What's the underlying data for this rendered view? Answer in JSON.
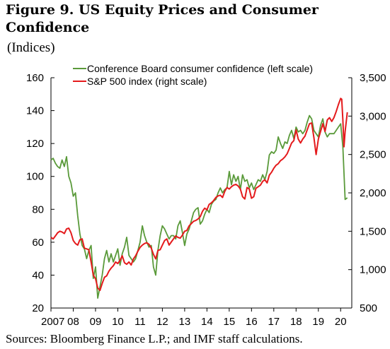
{
  "figure": {
    "title": "Figure 9. US Equity Prices and Consumer Confidence",
    "subtitle": "(Indices)",
    "source": "Sources: Bloomberg Finance L.P.; and IMF staff calculations."
  },
  "colors": {
    "confidence": "#5a9a3a",
    "sp500": "#e41a1c",
    "axis": "#000000"
  },
  "chart_data": {
    "type": "line",
    "title": "US Equity Prices and Consumer Confidence",
    "x_axis": {
      "range": [
        2007.0,
        2020.5
      ],
      "tick_labels": [
        {
          "x": 2007.0,
          "label": "2007"
        },
        {
          "x": 2008.0,
          "label": "08"
        },
        {
          "x": 2009.0,
          "label": "09"
        },
        {
          "x": 2010.0,
          "label": "10"
        },
        {
          "x": 2011.0,
          "label": "11"
        },
        {
          "x": 2012.0,
          "label": "12"
        },
        {
          "x": 2013.0,
          "label": "13"
        },
        {
          "x": 2014.0,
          "label": "14"
        },
        {
          "x": 2015.0,
          "label": "15"
        },
        {
          "x": 2016.0,
          "label": "16"
        },
        {
          "x": 2017.0,
          "label": "17"
        },
        {
          "x": 2018.0,
          "label": "18"
        },
        {
          "x": 2019.0,
          "label": "19"
        },
        {
          "x": 2020.0,
          "label": "20"
        }
      ]
    },
    "y_left": {
      "range": [
        20,
        160
      ],
      "ticks": [
        20,
        40,
        60,
        80,
        100,
        120,
        140,
        160
      ],
      "tick_labels": [
        "20",
        "40",
        "60",
        "80",
        "100",
        "120",
        "140",
        "160"
      ]
    },
    "y_right": {
      "range": [
        500,
        3500
      ],
      "ticks": [
        500,
        1000,
        1500,
        2000,
        2500,
        3000,
        3500
      ],
      "tick_labels": [
        "500",
        "1,000",
        "1,500",
        "2,000",
        "2,500",
        "3,000",
        "3,500"
      ]
    },
    "grid": false,
    "legend_position": "top",
    "series": [
      {
        "name": "Conference Board consumer confidence (left scale)",
        "axis": "left",
        "color": "#5a9a3a",
        "points": [
          [
            2007.0,
            110
          ],
          [
            2007.1,
            111
          ],
          [
            2007.2,
            108
          ],
          [
            2007.3,
            106
          ],
          [
            2007.4,
            105
          ],
          [
            2007.5,
            110
          ],
          [
            2007.6,
            106
          ],
          [
            2007.7,
            112
          ],
          [
            2007.8,
            100
          ],
          [
            2007.9,
            96
          ],
          [
            2008.0,
            88
          ],
          [
            2008.1,
            90
          ],
          [
            2008.2,
            76
          ],
          [
            2008.3,
            65
          ],
          [
            2008.4,
            58
          ],
          [
            2008.5,
            56
          ],
          [
            2008.6,
            50
          ],
          [
            2008.7,
            55
          ],
          [
            2008.8,
            58
          ],
          [
            2008.9,
            38
          ],
          [
            2009.0,
            45
          ],
          [
            2009.1,
            26
          ],
          [
            2009.2,
            33
          ],
          [
            2009.3,
            40
          ],
          [
            2009.4,
            50
          ],
          [
            2009.5,
            55
          ],
          [
            2009.6,
            48
          ],
          [
            2009.7,
            53
          ],
          [
            2009.8,
            48
          ],
          [
            2009.9,
            52
          ],
          [
            2010.0,
            56
          ],
          [
            2010.1,
            46
          ],
          [
            2010.2,
            53
          ],
          [
            2010.3,
            57
          ],
          [
            2010.4,
            63
          ],
          [
            2010.5,
            52
          ],
          [
            2010.6,
            50
          ],
          [
            2010.7,
            48
          ],
          [
            2010.8,
            50
          ],
          [
            2010.9,
            55
          ],
          [
            2011.0,
            60
          ],
          [
            2011.1,
            70
          ],
          [
            2011.2,
            64
          ],
          [
            2011.3,
            60
          ],
          [
            2011.4,
            57
          ],
          [
            2011.5,
            58
          ],
          [
            2011.6,
            45
          ],
          [
            2011.7,
            40
          ],
          [
            2011.8,
            55
          ],
          [
            2011.9,
            64
          ],
          [
            2012.0,
            70
          ],
          [
            2012.1,
            68
          ],
          [
            2012.2,
            65
          ],
          [
            2012.3,
            62
          ],
          [
            2012.4,
            64
          ],
          [
            2012.5,
            64
          ],
          [
            2012.6,
            62
          ],
          [
            2012.7,
            70
          ],
          [
            2012.8,
            73
          ],
          [
            2012.9,
            66
          ],
          [
            2013.0,
            58
          ],
          [
            2013.1,
            65
          ],
          [
            2013.2,
            68
          ],
          [
            2013.3,
            73
          ],
          [
            2013.4,
            78
          ],
          [
            2013.5,
            80
          ],
          [
            2013.6,
            81
          ],
          [
            2013.7,
            71
          ],
          [
            2013.8,
            73
          ],
          [
            2013.9,
            77
          ],
          [
            2014.0,
            80
          ],
          [
            2014.1,
            78
          ],
          [
            2014.2,
            83
          ],
          [
            2014.3,
            85
          ],
          [
            2014.4,
            86
          ],
          [
            2014.5,
            90
          ],
          [
            2014.6,
            93
          ],
          [
            2014.7,
            90
          ],
          [
            2014.8,
            92
          ],
          [
            2014.9,
            93
          ],
          [
            2015.0,
            103
          ],
          [
            2015.1,
            95
          ],
          [
            2015.2,
            101
          ],
          [
            2015.3,
            97
          ],
          [
            2015.4,
            100
          ],
          [
            2015.5,
            92
          ],
          [
            2015.6,
            101
          ],
          [
            2015.7,
            97
          ],
          [
            2015.8,
            98
          ],
          [
            2015.9,
            93
          ],
          [
            2016.0,
            96
          ],
          [
            2016.1,
            92
          ],
          [
            2016.2,
            95
          ],
          [
            2016.3,
            98
          ],
          [
            2016.4,
            97
          ],
          [
            2016.5,
            101
          ],
          [
            2016.6,
            98
          ],
          [
            2016.7,
            103
          ],
          [
            2016.8,
            113
          ],
          [
            2016.9,
            115
          ],
          [
            2017.0,
            114
          ],
          [
            2017.1,
            116
          ],
          [
            2017.2,
            124
          ],
          [
            2017.3,
            120
          ],
          [
            2017.4,
            117
          ],
          [
            2017.5,
            121
          ],
          [
            2017.6,
            120
          ],
          [
            2017.7,
            125
          ],
          [
            2017.8,
            128
          ],
          [
            2017.9,
            123
          ],
          [
            2018.0,
            130
          ],
          [
            2018.1,
            127
          ],
          [
            2018.2,
            128
          ],
          [
            2018.3,
            126
          ],
          [
            2018.4,
            128
          ],
          [
            2018.5,
            133
          ],
          [
            2018.6,
            137
          ],
          [
            2018.7,
            135
          ],
          [
            2018.8,
            128
          ],
          [
            2018.9,
            126
          ],
          [
            2019.0,
            124
          ],
          [
            2019.1,
            131
          ],
          [
            2019.2,
            135
          ],
          [
            2019.3,
            127
          ],
          [
            2019.4,
            124
          ],
          [
            2019.5,
            126
          ],
          [
            2019.6,
            126
          ],
          [
            2019.7,
            126
          ],
          [
            2019.8,
            128
          ],
          [
            2019.9,
            130
          ],
          [
            2020.0,
            132
          ],
          [
            2020.1,
            118
          ],
          [
            2020.2,
            86
          ],
          [
            2020.3,
            87
          ]
        ]
      },
      {
        "name": "S&P 500 index (right scale)",
        "axis": "right",
        "color": "#e41a1c",
        "points": [
          [
            2007.0,
            1420
          ],
          [
            2007.1,
            1400
          ],
          [
            2007.2,
            1440
          ],
          [
            2007.3,
            1480
          ],
          [
            2007.4,
            1500
          ],
          [
            2007.5,
            1490
          ],
          [
            2007.6,
            1470
          ],
          [
            2007.7,
            1530
          ],
          [
            2007.8,
            1540
          ],
          [
            2007.9,
            1480
          ],
          [
            2008.0,
            1380
          ],
          [
            2008.1,
            1340
          ],
          [
            2008.2,
            1320
          ],
          [
            2008.3,
            1390
          ],
          [
            2008.4,
            1400
          ],
          [
            2008.5,
            1280
          ],
          [
            2008.6,
            1270
          ],
          [
            2008.7,
            1260
          ],
          [
            2008.8,
            1100
          ],
          [
            2008.9,
            930
          ],
          [
            2009.0,
            880
          ],
          [
            2009.1,
            760
          ],
          [
            2009.2,
            730
          ],
          [
            2009.3,
            820
          ],
          [
            2009.4,
            900
          ],
          [
            2009.5,
            920
          ],
          [
            2009.6,
            980
          ],
          [
            2009.7,
            1020
          ],
          [
            2009.8,
            1050
          ],
          [
            2009.9,
            1100
          ],
          [
            2010.0,
            1080
          ],
          [
            2010.1,
            1120
          ],
          [
            2010.2,
            1180
          ],
          [
            2010.3,
            1090
          ],
          [
            2010.4,
            1070
          ],
          [
            2010.5,
            1100
          ],
          [
            2010.6,
            1060
          ],
          [
            2010.7,
            1140
          ],
          [
            2010.8,
            1180
          ],
          [
            2010.9,
            1240
          ],
          [
            2011.0,
            1290
          ],
          [
            2011.1,
            1320
          ],
          [
            2011.2,
            1340
          ],
          [
            2011.3,
            1350
          ],
          [
            2011.4,
            1330
          ],
          [
            2011.5,
            1280
          ],
          [
            2011.6,
            1200
          ],
          [
            2011.7,
            1140
          ],
          [
            2011.8,
            1250
          ],
          [
            2011.9,
            1260
          ],
          [
            2012.0,
            1320
          ],
          [
            2012.1,
            1380
          ],
          [
            2012.2,
            1400
          ],
          [
            2012.3,
            1320
          ],
          [
            2012.4,
            1360
          ],
          [
            2012.5,
            1400
          ],
          [
            2012.6,
            1440
          ],
          [
            2012.7,
            1420
          ],
          [
            2012.8,
            1410
          ],
          [
            2012.9,
            1450
          ],
          [
            2013.0,
            1500
          ],
          [
            2013.1,
            1510
          ],
          [
            2013.2,
            1570
          ],
          [
            2013.3,
            1600
          ],
          [
            2013.4,
            1630
          ],
          [
            2013.5,
            1640
          ],
          [
            2013.6,
            1660
          ],
          [
            2013.7,
            1690
          ],
          [
            2013.8,
            1760
          ],
          [
            2013.9,
            1800
          ],
          [
            2014.0,
            1780
          ],
          [
            2014.1,
            1850
          ],
          [
            2014.2,
            1870
          ],
          [
            2014.3,
            1900
          ],
          [
            2014.4,
            1940
          ],
          [
            2014.5,
            1960
          ],
          [
            2014.6,
            1970
          ],
          [
            2014.7,
            1940
          ],
          [
            2014.8,
            2020
          ],
          [
            2014.9,
            2070
          ],
          [
            2015.0,
            2050
          ],
          [
            2015.1,
            2080
          ],
          [
            2015.2,
            2100
          ],
          [
            2015.3,
            2110
          ],
          [
            2015.4,
            2090
          ],
          [
            2015.5,
            2050
          ],
          [
            2015.6,
            1950
          ],
          [
            2015.7,
            1920
          ],
          [
            2015.8,
            2070
          ],
          [
            2015.9,
            2050
          ],
          [
            2016.0,
            1930
          ],
          [
            2016.1,
            1950
          ],
          [
            2016.2,
            2060
          ],
          [
            2016.3,
            2080
          ],
          [
            2016.4,
            2100
          ],
          [
            2016.5,
            2150
          ],
          [
            2016.6,
            2170
          ],
          [
            2016.7,
            2130
          ],
          [
            2016.8,
            2230
          ],
          [
            2016.9,
            2270
          ],
          [
            2017.0,
            2320
          ],
          [
            2017.1,
            2360
          ],
          [
            2017.2,
            2380
          ],
          [
            2017.3,
            2420
          ],
          [
            2017.4,
            2440
          ],
          [
            2017.5,
            2470
          ],
          [
            2017.6,
            2510
          ],
          [
            2017.7,
            2580
          ],
          [
            2017.8,
            2650
          ],
          [
            2017.9,
            2680
          ],
          [
            2018.0,
            2820
          ],
          [
            2018.1,
            2700
          ],
          [
            2018.2,
            2650
          ],
          [
            2018.3,
            2700
          ],
          [
            2018.4,
            2740
          ],
          [
            2018.5,
            2820
          ],
          [
            2018.6,
            2900
          ],
          [
            2018.7,
            2910
          ],
          [
            2018.8,
            2720
          ],
          [
            2018.9,
            2500
          ],
          [
            2019.0,
            2700
          ],
          [
            2019.1,
            2800
          ],
          [
            2019.2,
            2900
          ],
          [
            2019.3,
            2800
          ],
          [
            2019.4,
            2950
          ],
          [
            2019.5,
            2980
          ],
          [
            2019.6,
            2930
          ],
          [
            2019.7,
            2980
          ],
          [
            2019.8,
            3060
          ],
          [
            2019.9,
            3150
          ],
          [
            2020.0,
            3230
          ],
          [
            2020.05,
            3220
          ],
          [
            2020.1,
            2950
          ],
          [
            2020.15,
            2600
          ],
          [
            2020.2,
            2800
          ],
          [
            2020.3,
            3050
          ]
        ]
      }
    ]
  }
}
